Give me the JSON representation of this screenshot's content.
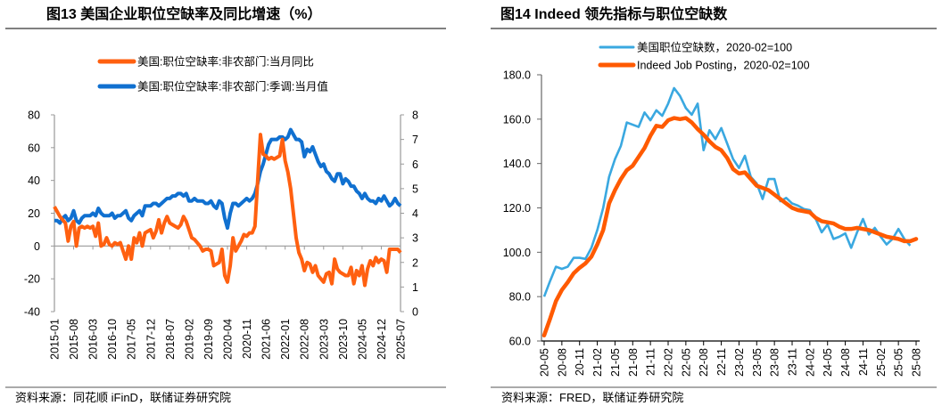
{
  "charts_meta": {
    "left_source": "资料来源：同花顺 iFinD，联储证券研究院",
    "right_source": "资料来源：FRED，联储证券研究院"
  },
  "chart_data": [
    {
      "type": "line",
      "title": "图13 美国企业职位空缺率及同比增速（%）",
      "frequency": "monthly",
      "x_range": [
        "2015-01",
        "2025-07"
      ],
      "x_tick_labels": [
        "2015-01",
        "2015-08",
        "2016-03",
        "2016-10",
        "2017-05",
        "2017-12",
        "2018-07",
        "2019-02",
        "2019-09",
        "2020-04",
        "2020-11",
        "2021-06",
        "2022-01",
        "2022-08",
        "2023-03",
        "2023-10",
        "2024-05",
        "2024-12",
        "2025-07"
      ],
      "y_left": {
        "range": [
          -40,
          80
        ],
        "ticks": [
          "80",
          "60",
          "40",
          "20",
          "0",
          "-20",
          "-40"
        ]
      },
      "y_right": {
        "range": [
          0,
          8
        ],
        "ticks": [
          "8",
          "7",
          "6",
          "5",
          "4",
          "3",
          "2",
          "1",
          "0"
        ]
      },
      "legend_position": "top",
      "grid": false,
      "series": [
        {
          "name": "美国:职位空缺率:非农部门:当月同比",
          "axis": "left",
          "color": "#FF6010",
          "values": [
            24,
            21,
            18,
            16,
            14,
            3,
            12,
            15,
            0,
            11,
            12,
            11,
            12,
            11,
            12,
            6,
            14,
            0,
            1,
            5,
            1,
            0,
            2,
            1,
            2,
            -3,
            -8,
            0,
            -8,
            5,
            2,
            8,
            0,
            8,
            9,
            10,
            5,
            9,
            16,
            8,
            14,
            18,
            14,
            13,
            12,
            11,
            13,
            18,
            15,
            10,
            5,
            4,
            2,
            0,
            -3,
            -2,
            -2,
            -3,
            -12,
            -11,
            -10,
            -2,
            -18,
            -22,
            -12,
            5,
            -3,
            0,
            3,
            7,
            6,
            8,
            8,
            12,
            40,
            68,
            56,
            55,
            53,
            54,
            53,
            54,
            55,
            65,
            52,
            45,
            35,
            20,
            5,
            -4,
            -8,
            -15,
            -10,
            -11,
            -16,
            -12,
            -18,
            -20,
            -22,
            -17,
            -16,
            -23,
            -8,
            -14,
            -16,
            -17,
            -18,
            -18,
            -13,
            -23,
            -15,
            -18,
            -12,
            -24,
            -14,
            -9,
            -12,
            -7,
            -10,
            -8,
            -9,
            -16,
            -2,
            -2,
            -2,
            -2,
            -4
          ]
        },
        {
          "name": "美国:职位空缺率:非农部门:季调:当月值",
          "axis": "right",
          "color": "#1070D0",
          "values": [
            3.7,
            3.7,
            3.6,
            3.8,
            3.9,
            3.7,
            3.8,
            4.1,
            3.7,
            3.6,
            3.8,
            3.9,
            3.9,
            3.9,
            4.0,
            3.9,
            4.2,
            4.0,
            3.9,
            3.9,
            3.9,
            4.0,
            3.8,
            3.9,
            3.9,
            4.0,
            4.1,
            3.8,
            3.7,
            3.9,
            4.0,
            4.1,
            3.9,
            4.3,
            4.3,
            4.3,
            4.4,
            4.4,
            4.3,
            4.4,
            4.5,
            4.6,
            4.6,
            4.7,
            4.7,
            4.8,
            4.8,
            4.7,
            4.8,
            4.5,
            4.5,
            4.6,
            4.5,
            4.5,
            4.5,
            4.4,
            4.4,
            4.5,
            4.3,
            4.2,
            4.5,
            4.4,
            3.8,
            3.4,
            4.0,
            4.4,
            4.4,
            4.3,
            4.4,
            4.5,
            4.6,
            4.5,
            4.6,
            4.8,
            5.2,
            5.7,
            6.0,
            6.4,
            6.8,
            7.0,
            7.0,
            7.0,
            7.1,
            7.1,
            7.0,
            7.1,
            7.4,
            7.2,
            7.0,
            7.0,
            6.9,
            6.3,
            6.6,
            6.5,
            6.7,
            6.4,
            6.1,
            5.9,
            6.0,
            5.7,
            5.6,
            5.4,
            5.3,
            5.6,
            5.6,
            5.2,
            5.4,
            5.3,
            5.1,
            5.1,
            4.9,
            4.8,
            4.6,
            4.8,
            4.6,
            4.5,
            4.5,
            4.4,
            4.6,
            4.5,
            4.7,
            4.5,
            4.3,
            4.4,
            4.6,
            4.4,
            4.3
          ]
        }
      ]
    },
    {
      "type": "line",
      "title": "图14 Indeed 领先指标与职位空缺数",
      "frequency": "monthly",
      "x_range": [
        "20-05",
        "25-08"
      ],
      "x_tick_labels": [
        "20-05",
        "20-08",
        "20-11",
        "21-02",
        "21-05",
        "21-08",
        "21-11",
        "22-02",
        "22-05",
        "22-08",
        "22-11",
        "23-02",
        "23-05",
        "23-08",
        "23-11",
        "24-02",
        "24-05",
        "24-08",
        "24-11",
        "25-02",
        "25-05",
        "25-08"
      ],
      "y": {
        "range": [
          60,
          180
        ],
        "ticks": [
          "180.0",
          "160.0",
          "140.0",
          "120.0",
          "100.0",
          "80.0",
          "60.0"
        ]
      },
      "legend_position": "top",
      "grid": false,
      "series": [
        {
          "name": "美国职位空缺数，2020-02=100",
          "color": "#3AA8E0",
          "values": [
            80,
            87,
            93.5,
            92.5,
            93.5,
            97.5,
            97.5,
            97,
            102,
            110,
            120,
            134,
            142,
            148,
            158.5,
            157.5,
            156.5,
            163,
            159.5,
            164,
            161.5,
            167,
            174,
            170.5,
            165,
            162,
            167,
            146,
            155,
            151,
            156,
            149,
            142,
            138,
            143.5,
            134,
            131,
            124,
            133,
            133,
            123,
            124.5,
            122,
            121,
            119.5,
            119,
            115,
            109,
            112.5,
            106,
            107,
            108.5,
            102,
            109,
            115,
            108,
            111,
            107,
            103.5,
            106,
            110.5,
            106,
            103
          ]
        },
        {
          "name": "Indeed Job Posting，2020-02=100",
          "color": "#FF5A00",
          "values": [
            62.5,
            70,
            78,
            83,
            86.5,
            90.5,
            93,
            95,
            98,
            103.5,
            110,
            122,
            128,
            133,
            137,
            139,
            143,
            147,
            152.5,
            157,
            156.5,
            159.5,
            160.5,
            160,
            160.5,
            158.5,
            155.5,
            153,
            150,
            147.5,
            146,
            142.5,
            137.5,
            135.5,
            136,
            133,
            130,
            129,
            128,
            126,
            124,
            122,
            120,
            119,
            118.5,
            118,
            115.5,
            114,
            113.5,
            113,
            111.5,
            110.5,
            110.5,
            111,
            110.5,
            110,
            109,
            108,
            107,
            106.5,
            106,
            105,
            105,
            106
          ]
        }
      ]
    }
  ]
}
